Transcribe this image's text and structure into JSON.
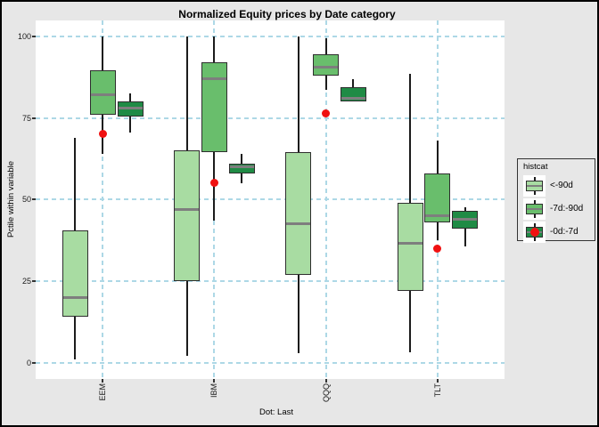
{
  "title": "Normalized Equity prices by Date category",
  "y_axis": {
    "title": "Pctile within variable",
    "ticks": [
      100,
      75,
      50,
      25,
      0
    ]
  },
  "x_axis": {
    "title": "Dot: Last",
    "categories": [
      "EEM",
      "IBM",
      "QQQ",
      "TLT"
    ]
  },
  "legend": {
    "title": "histcat"
  },
  "colors": {
    "figure_bg": "#e7e7e7",
    "panel_bg": "#ffffff",
    "gridline": "#add8e6",
    "box_stroke": "#2e2e2e",
    "median": "#7e7e7e",
    "whisker": "#1c1c1c",
    "dot_red": "#f01111"
  },
  "chart_data": {
    "type": "boxplot",
    "title": "Normalized Equity prices by Date category",
    "xlabel": "Dot: Last",
    "ylabel": "Pctile within variable",
    "ylim": [
      0,
      100
    ],
    "yticks": [
      0,
      25,
      50,
      75,
      100
    ],
    "grid": true,
    "legend_position": "right",
    "legend_title": "histcat",
    "categories": [
      "EEM",
      "IBM",
      "QQQ",
      "TLT"
    ],
    "series": [
      {
        "name": "<-90d",
        "color": "#a8dca2",
        "legend_dot": false,
        "boxes": [
          {
            "lo": 1,
            "q1": 14,
            "med": 20,
            "q3": 40.5,
            "hi": 69
          },
          {
            "lo": 2,
            "q1": 25,
            "med": 47,
            "q3": 65,
            "hi": 100
          },
          {
            "lo": 3,
            "q1": 27,
            "med": 42.5,
            "q3": 64.5,
            "hi": 100
          },
          {
            "lo": 3,
            "q1": 22,
            "med": 36.5,
            "q3": 49,
            "hi": 88.5
          }
        ]
      },
      {
        "name": "-7d:-90d",
        "color": "#69be6c",
        "legend_dot": false,
        "boxes": [
          {
            "lo": 64,
            "q1": 76,
            "med": 82,
            "q3": 89.5,
            "hi": 100
          },
          {
            "lo": 43.5,
            "q1": 64.5,
            "med": 87,
            "q3": 92,
            "hi": 100
          },
          {
            "lo": 83.5,
            "q1": 88,
            "med": 90.5,
            "q3": 94.5,
            "hi": 99.5
          },
          {
            "lo": 37.5,
            "q1": 43,
            "med": 45,
            "q3": 58,
            "hi": 68
          }
        ]
      },
      {
        "name": "-0d:-7d",
        "color": "#1f8b45",
        "legend_dot": true,
        "boxes": [
          {
            "lo": 70.5,
            "q1": 75.5,
            "med": 78,
            "q3": 80,
            "hi": 82.5
          },
          {
            "lo": 55,
            "q1": 58,
            "med": 60,
            "q3": 61,
            "hi": 64
          },
          {
            "lo": 80,
            "q1": 80,
            "med": 81,
            "q3": 84.5,
            "hi": 87
          },
          {
            "lo": 35.5,
            "q1": 41,
            "med": 44,
            "q3": 46.5,
            "hi": 47.5
          }
        ]
      }
    ],
    "dots": {
      "name": "Last",
      "color": "#f01111",
      "values": [
        70,
        55,
        76.5,
        35
      ]
    }
  }
}
